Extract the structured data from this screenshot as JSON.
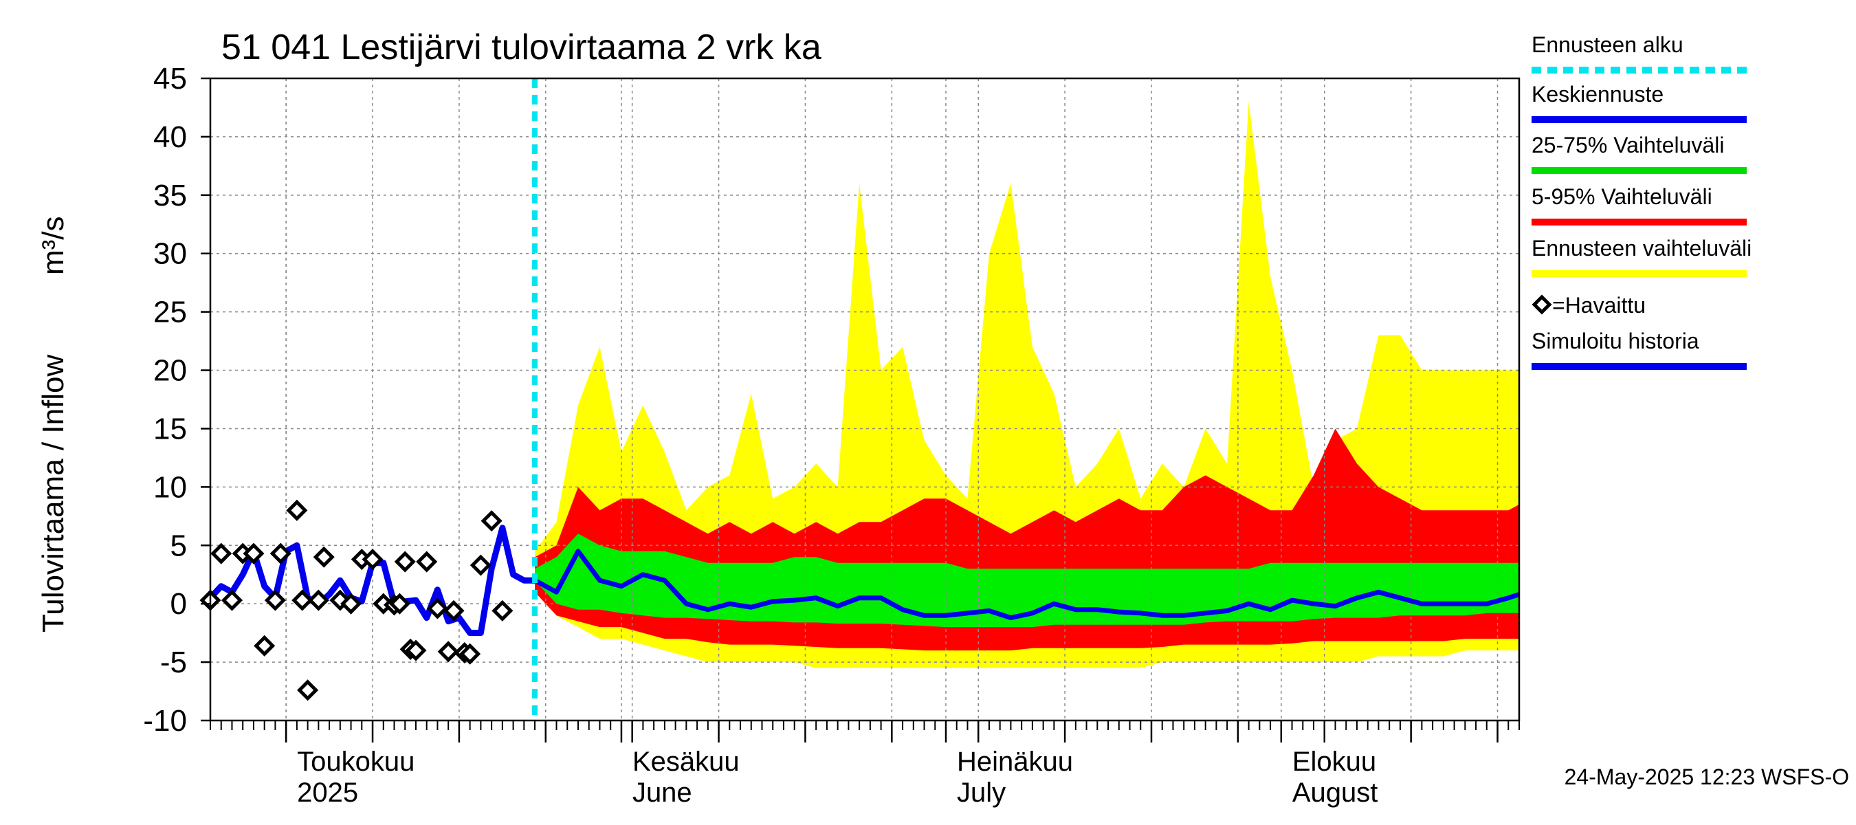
{
  "chart_data": {
    "type": "area",
    "title": "51 041 Lestijärvi tulovirtaama 2 vrk ka",
    "ylabel_fi": "Tulovirtaama / Inflow",
    "ylabel_unit": "m³/s",
    "ylim": [
      -10,
      45
    ],
    "yticks": [
      -10,
      -5,
      0,
      5,
      10,
      15,
      20,
      25,
      30,
      35,
      40,
      45
    ],
    "xlim_days": [
      0,
      121
    ],
    "forecast_start_day": 30,
    "month_labels": [
      {
        "day": 7,
        "fi": "Toukokuu",
        "en": "2025"
      },
      {
        "day": 38,
        "fi": "Kesäkuu",
        "en": "June"
      },
      {
        "day": 68,
        "fi": "Heinäkuu",
        "en": "July"
      },
      {
        "day": 99,
        "fi": "Elokuu",
        "en": "August"
      }
    ],
    "month_boundaries": [
      7,
      38,
      68,
      99
    ],
    "legend": [
      {
        "label": "Ennusteen alku",
        "color": "#00e5ee",
        "style": "dashed"
      },
      {
        "label": "Keskiennuste",
        "color": "#0000ee",
        "style": "line"
      },
      {
        "label": "25-75% Vaihteluväli",
        "color": "#00dd00",
        "style": "line"
      },
      {
        "label": "5-95% Vaihteluväli",
        "color": "#ff0000",
        "style": "line"
      },
      {
        "label": "Ennusteen vaihteluväli",
        "color": "#ffff00",
        "style": "line"
      },
      {
        "label": "=Havaittu",
        "color": "#000000",
        "style": "diamond"
      },
      {
        "label": "Simuloitu historia",
        "color": "#0000ee",
        "style": "line"
      }
    ],
    "footer": "24-May-2025 12:23 WSFS-O",
    "colors": {
      "full_range": "#ffff00",
      "p5_95": "#ff0000",
      "p25_75": "#00ee00",
      "median": "#0000ee",
      "history": "#0000ee",
      "forecast_start": "#00e5ee",
      "grid": "#888888"
    },
    "observed": {
      "x": [
        0,
        1,
        2,
        3,
        4,
        5,
        6,
        6.5,
        8,
        8.5,
        9,
        10,
        10.5,
        12,
        13,
        14,
        15,
        16,
        17,
        17.5,
        18,
        18.5,
        19,
        20,
        21,
        22,
        22.5,
        23.5,
        24,
        25,
        26,
        27
      ],
      "y": [
        0.3,
        4.3,
        0.3,
        4.3,
        4.3,
        -3.6,
        0.3,
        4.3,
        8,
        0.3,
        -7.4,
        0.3,
        4,
        0.3,
        0,
        3.8,
        3.8,
        0,
        -0.1,
        0,
        3.6,
        -3.9,
        -4,
        3.6,
        -0.4,
        -4.1,
        -0.6,
        -4.2,
        -4.3,
        3.3,
        7.1,
        -0.6
      ]
    },
    "history": {
      "x": [
        0,
        1,
        2,
        3,
        4,
        5,
        6,
        7,
        8,
        9,
        10,
        11,
        12,
        13,
        14,
        15,
        16,
        17,
        18,
        19,
        20,
        21,
        22,
        23,
        24,
        25,
        26,
        27,
        28,
        29,
        30
      ],
      "y": [
        0.5,
        1.5,
        1,
        2.5,
        4.5,
        1.5,
        0.5,
        4.5,
        5,
        0.5,
        0,
        0.8,
        2,
        0.5,
        0.2,
        3.5,
        3.5,
        0,
        0.2,
        0.3,
        -1.2,
        1.2,
        -1.5,
        -1.2,
        -2.5,
        -2.5,
        3,
        6.5,
        2.5,
        2,
        2
      ]
    },
    "forecast": {
      "x": [
        30,
        32,
        34,
        36,
        38,
        40,
        42,
        44,
        46,
        48,
        50,
        52,
        54,
        56,
        58,
        60,
        62,
        64,
        66,
        68,
        70,
        72,
        74,
        76,
        78,
        80,
        82,
        84,
        86,
        88,
        90,
        92,
        94,
        96,
        98,
        100,
        102,
        104,
        106,
        108,
        110,
        112,
        114,
        116,
        118,
        120,
        121
      ],
      "median": [
        2,
        1,
        4.5,
        2,
        1.5,
        2.5,
        2,
        0,
        -0.5,
        0,
        -0.3,
        0.2,
        0.3,
        0.5,
        -0.2,
        0.5,
        0.5,
        -0.5,
        -1,
        -1,
        -0.8,
        -0.6,
        -1.2,
        -0.8,
        0,
        -0.5,
        -0.5,
        -0.7,
        -0.8,
        -1,
        -1,
        -0.8,
        -0.6,
        0,
        -0.5,
        0.3,
        0,
        -0.2,
        0.5,
        1,
        0.5,
        0,
        0,
        0,
        0,
        0.5,
        0.8
      ],
      "p25": [
        2,
        0,
        -0.5,
        -0.5,
        -0.8,
        -1,
        -1.2,
        -1.2,
        -1.3,
        -1.4,
        -1.5,
        -1.5,
        -1.6,
        -1.6,
        -1.7,
        -1.7,
        -1.7,
        -1.8,
        -1.9,
        -2,
        -2,
        -2,
        -2,
        -2,
        -1.8,
        -1.8,
        -1.8,
        -1.8,
        -1.8,
        -1.8,
        -1.8,
        -1.6,
        -1.5,
        -1.5,
        -1.5,
        -1.5,
        -1.3,
        -1.2,
        -1.2,
        -1.2,
        -1,
        -1,
        -1,
        -1,
        -0.8,
        -0.8,
        -0.8
      ],
      "p75": [
        3,
        4,
        6,
        5,
        4.5,
        4.5,
        4.5,
        4,
        3.5,
        3.5,
        3.5,
        3.5,
        4,
        4,
        3.5,
        3.5,
        3.5,
        3.5,
        3.5,
        3.5,
        3,
        3,
        3,
        3,
        3,
        3,
        3,
        3,
        3,
        3,
        3,
        3,
        3,
        3,
        3.5,
        3.5,
        3.5,
        3.5,
        3.5,
        3.5,
        3.5,
        3.5,
        3.5,
        3.5,
        3.5,
        3.5,
        3.5
      ],
      "p5": [
        1,
        -1,
        -1.5,
        -2,
        -2,
        -2.5,
        -3,
        -3,
        -3.3,
        -3.5,
        -3.5,
        -3.5,
        -3.6,
        -3.7,
        -3.8,
        -3.8,
        -3.8,
        -3.9,
        -4,
        -4,
        -4,
        -4,
        -4,
        -3.8,
        -3.8,
        -3.8,
        -3.8,
        -3.8,
        -3.8,
        -3.7,
        -3.5,
        -3.5,
        -3.5,
        -3.5,
        -3.5,
        -3.4,
        -3.2,
        -3.2,
        -3.2,
        -3.2,
        -3.2,
        -3.2,
        -3.2,
        -3,
        -3,
        -3,
        -3
      ],
      "p95": [
        4,
        5,
        10,
        8,
        9,
        9,
        8,
        7,
        6,
        7,
        6,
        7,
        6,
        7,
        6,
        7,
        7,
        8,
        9,
        9,
        8,
        7,
        6,
        7,
        8,
        7,
        8,
        9,
        8,
        8,
        10,
        11,
        10,
        9,
        8,
        8,
        11,
        15,
        12,
        10,
        9,
        8,
        8,
        8,
        8,
        8,
        8.5
      ],
      "min": [
        1,
        -1,
        -2,
        -3,
        -3,
        -3.5,
        -4,
        -4.5,
        -5,
        -5,
        -5,
        -5,
        -5,
        -5.5,
        -5.5,
        -5.5,
        -5.5,
        -5.5,
        -5.5,
        -5.5,
        -5.5,
        -5.5,
        -5.5,
        -5.5,
        -5.5,
        -5.5,
        -5.5,
        -5.5,
        -5.5,
        -5,
        -5,
        -5,
        -5,
        -5,
        -5,
        -5,
        -5,
        -5,
        -5,
        -4.5,
        -4.5,
        -4.5,
        -4.5,
        -4,
        -4,
        -4,
        -4
      ],
      "max": [
        4.5,
        7,
        17,
        22,
        13,
        17,
        13,
        8,
        10,
        11,
        18,
        9,
        10,
        12,
        10,
        36,
        20,
        22,
        14,
        11,
        9,
        30,
        36,
        22,
        18,
        10,
        12,
        15,
        9,
        12,
        10,
        15,
        12,
        43,
        28,
        20,
        10,
        14,
        15,
        23,
        23,
        20,
        20,
        20,
        20,
        20,
        20
      ]
    }
  }
}
